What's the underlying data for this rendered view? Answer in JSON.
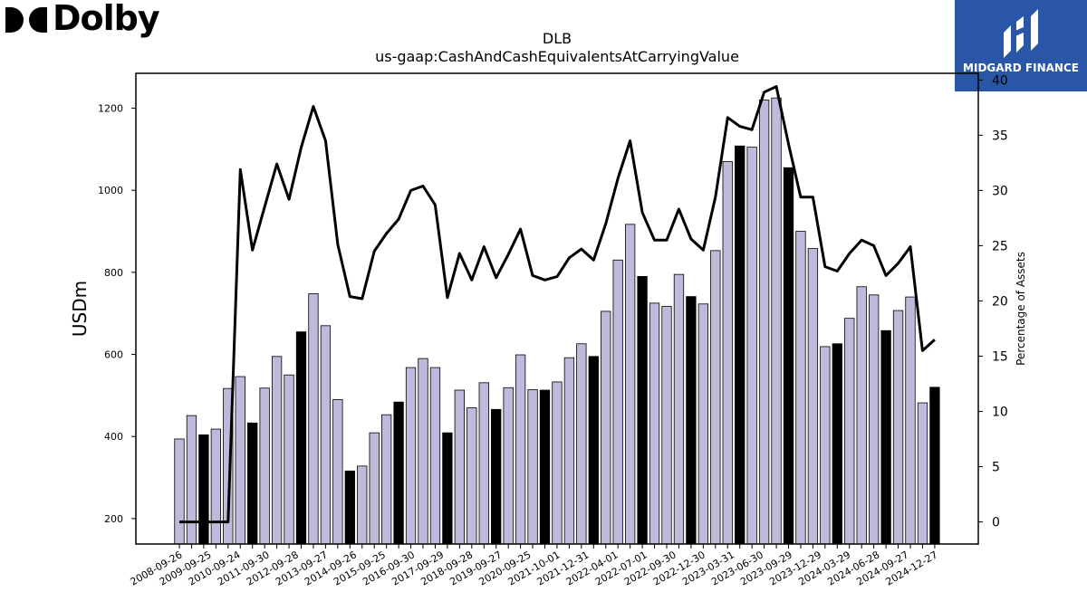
{
  "brand": {
    "name": "Dolby",
    "logo_icon": "dolby-double-d-icon"
  },
  "badge": {
    "text": "MIDGARD FINANCE",
    "icon": "midgard-finance-logo-icon",
    "color": "#2a56a8"
  },
  "chart_data": {
    "type": "bar+line",
    "title": "DLB",
    "subtitle": "us-gaap:CashAndCashEquivalentsAtCarryingValue",
    "ylabel": "USDm",
    "y2label": "Percentage of Assets",
    "ylim": [
      138,
      1285
    ],
    "y2lim": [
      -2,
      40.6
    ],
    "yticks": [
      200,
      400,
      600,
      800,
      1000,
      1200
    ],
    "y2ticks": [
      0,
      5,
      10,
      15,
      20,
      25,
      30,
      35,
      40
    ],
    "x_tick_labels": [
      "2008-09-26",
      "2009-09-25",
      "2010-09-24",
      "2011-09-30",
      "2012-09-28",
      "2013-09-27",
      "2014-09-26",
      "2015-09-25",
      "2016-09-30",
      "2017-09-29",
      "2018-09-28",
      "2019-09-27",
      "2020-09-25",
      "2021-10-01",
      "2021-12-31",
      "2022-04-01",
      "2022-07-01",
      "2022-09-30",
      "2022-12-30",
      "2023-03-31",
      "2023-06-30",
      "2023-09-29",
      "2023-12-29",
      "2024-03-29",
      "2024-06-28",
      "2024-09-27",
      "2024-12-27"
    ],
    "bar_colors": {
      "quarterly": "#bdbadb",
      "annual": "#000000"
    },
    "bar_values": [
      394,
      451,
      404,
      418,
      517,
      546,
      433,
      518,
      595,
      550,
      655,
      748,
      670,
      490,
      316,
      328,
      409,
      453,
      484,
      568,
      590,
      568,
      409,
      513,
      470,
      531,
      466,
      519,
      599,
      514,
      513,
      533,
      592,
      626,
      595,
      705,
      830,
      917,
      790,
      725,
      717,
      795,
      741,
      723,
      853,
      1070,
      1108,
      1105,
      1220,
      1225,
      1055,
      900,
      858,
      619,
      626,
      688,
      765,
      745,
      658,
      707,
      740,
      482,
      520
    ],
    "bar_is_annual": [
      false,
      false,
      true,
      false,
      false,
      false,
      true,
      false,
      false,
      false,
      true,
      false,
      false,
      false,
      true,
      false,
      false,
      false,
      true,
      false,
      false,
      false,
      true,
      false,
      false,
      false,
      true,
      false,
      false,
      false,
      true,
      false,
      false,
      false,
      true,
      false,
      false,
      false,
      true,
      false,
      false,
      false,
      true,
      false,
      false,
      false,
      true,
      false,
      false,
      false,
      true,
      false,
      false,
      false,
      true,
      false,
      false,
      false,
      true,
      false,
      false,
      false,
      true
    ],
    "line_values": [
      0,
      0,
      0,
      0,
      0,
      31.9,
      24.6,
      28.5,
      32.4,
      29.2,
      33.9,
      37.6,
      34.5,
      25.1,
      20.4,
      20.2,
      24.5,
      26.1,
      27.4,
      30.0,
      30.4,
      28.7,
      20.3,
      24.3,
      21.9,
      24.9,
      22.1,
      24.2,
      26.5,
      22.3,
      21.9,
      22.2,
      23.9,
      24.7,
      23.7,
      27.0,
      31.1,
      34.5,
      28.0,
      25.5,
      25.5,
      28.3,
      25.6,
      24.6,
      29.4,
      36.6,
      35.8,
      35.5,
      38.9,
      39.4,
      34.2,
      29.4,
      29.4,
      23.1,
      22.7,
      24.3,
      25.5,
      25.0,
      22.3,
      23.4,
      24.9,
      15.5,
      16.5
    ],
    "grid": false
  }
}
